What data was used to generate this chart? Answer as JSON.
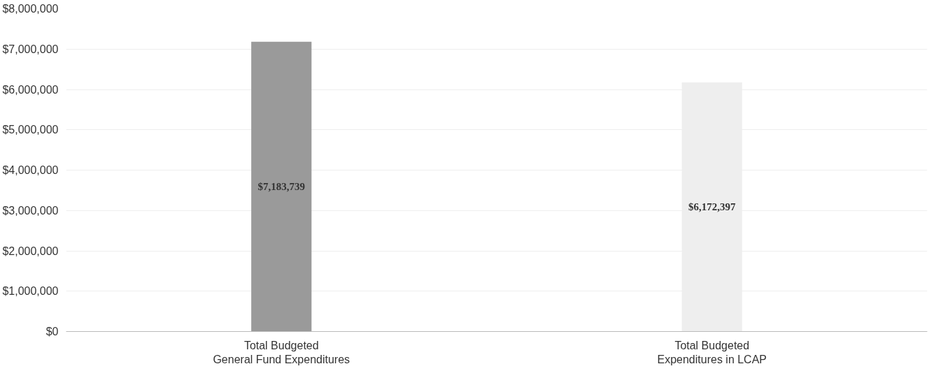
{
  "chart_data": {
    "type": "bar",
    "categories": [
      "Total Budgeted\nGeneral Fund Expenditures",
      "Total Budgeted\nExpenditures in LCAP"
    ],
    "values": [
      7183739,
      6172397
    ],
    "colors": [
      "#9a9a9a",
      "#eeeeee"
    ],
    "value_labels": [
      "$7,183,739",
      "$6,172,397"
    ],
    "ylim": [
      0,
      8000000
    ],
    "yticks": [
      {
        "value": 0,
        "label": "$0"
      },
      {
        "value": 1000000,
        "label": "$1,000,000"
      },
      {
        "value": 2000000,
        "label": "$2,000,000"
      },
      {
        "value": 3000000,
        "label": "$3,000,000"
      },
      {
        "value": 4000000,
        "label": "$4,000,000"
      },
      {
        "value": 5000000,
        "label": "$5,000,000"
      },
      {
        "value": 6000000,
        "label": "$6,000,000"
      },
      {
        "value": 7000000,
        "label": "$7,000,000"
      },
      {
        "value": 8000000,
        "label": "$8,000,000"
      }
    ],
    "grid": "y"
  }
}
